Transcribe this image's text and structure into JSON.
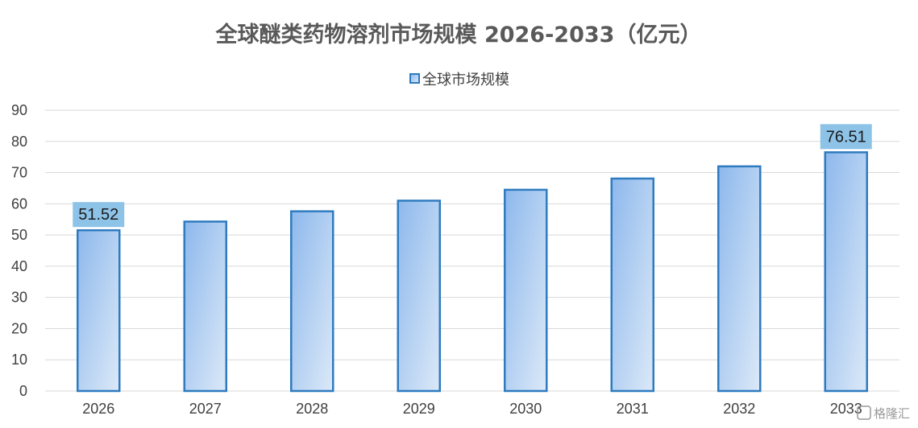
{
  "chart_data": {
    "type": "bar",
    "title": "全球醚类药物溶剂市场规模 2026-2033（亿元）",
    "categories": [
      "2026",
      "2027",
      "2028",
      "2029",
      "2030",
      "2031",
      "2032",
      "2033"
    ],
    "series": [
      {
        "name": "全球市场规模",
        "values": [
          51.52,
          54.3,
          57.6,
          61.0,
          64.5,
          68.1,
          72.0,
          76.51
        ],
        "data_labels": [
          "51.52",
          "",
          "",
          "",
          "",
          "",
          "",
          "76.51"
        ]
      }
    ],
    "xlabel": "",
    "ylabel": "",
    "ylim": [
      0,
      90
    ],
    "yticks": [
      0,
      10,
      20,
      30,
      40,
      50,
      60,
      70,
      80,
      90
    ],
    "grid": true,
    "legend_position": "top-center",
    "colors": {
      "bar_fill_start": "#8db8ec",
      "bar_fill_end": "#dce9f8",
      "bar_border": "#2e7bbf",
      "label_bg": "#8ec3e8",
      "grid": "#d9d9d9"
    }
  },
  "watermark": "格隆汇"
}
